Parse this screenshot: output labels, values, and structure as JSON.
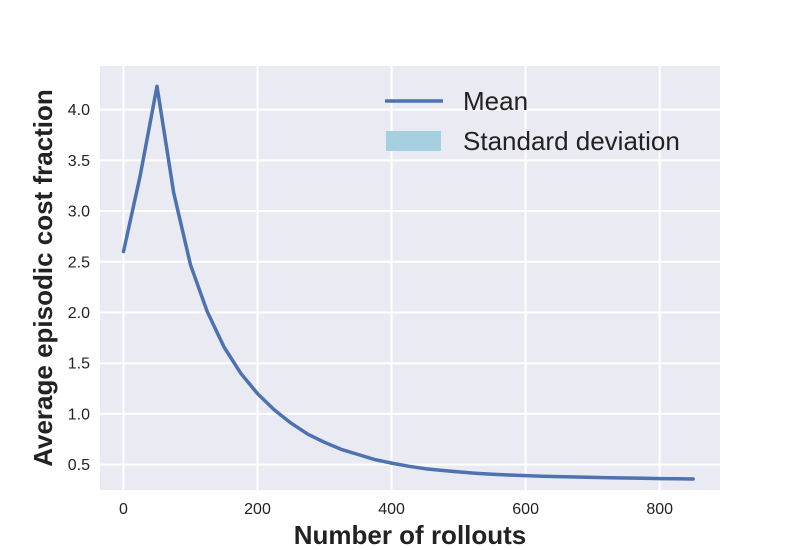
{
  "chart_data": {
    "type": "line",
    "xlabel": "Number of rollouts",
    "ylabel": "Average episodic cost fraction",
    "xlim": [
      -35,
      890
    ],
    "ylim": [
      0.25,
      4.43
    ],
    "xticks": [
      0,
      200,
      400,
      600,
      800
    ],
    "yticks": [
      0.5,
      1.0,
      1.5,
      2.0,
      2.5,
      3.0,
      3.5,
      4.0
    ],
    "ytick_labels": [
      "0.5",
      "1.0",
      "1.5",
      "2.0",
      "2.5",
      "3.0",
      "3.5",
      "4.0"
    ],
    "grid": true,
    "legend_position": "top-right",
    "legend": [
      {
        "label": "Mean",
        "kind": "line",
        "color": "#4c72b0"
      },
      {
        "label": "Standard deviation",
        "kind": "patch",
        "color": "#a6cfe0"
      }
    ],
    "series": [
      {
        "name": "Mean",
        "color": "#4c72b0",
        "x": [
          0,
          25,
          50,
          75,
          100,
          125,
          150,
          175,
          200,
          225,
          250,
          275,
          300,
          325,
          350,
          375,
          400,
          425,
          450,
          475,
          500,
          525,
          550,
          575,
          600,
          625,
          650,
          675,
          700,
          725,
          750,
          775,
          800,
          825,
          850
        ],
        "y": [
          2.6,
          3.35,
          4.23,
          3.18,
          2.47,
          2.01,
          1.66,
          1.4,
          1.2,
          1.04,
          0.91,
          0.8,
          0.72,
          0.65,
          0.6,
          0.55,
          0.515,
          0.485,
          0.46,
          0.443,
          0.428,
          0.416,
          0.406,
          0.398,
          0.392,
          0.386,
          0.382,
          0.378,
          0.374,
          0.371,
          0.368,
          0.365,
          0.362,
          0.36,
          0.358
        ]
      }
    ]
  }
}
